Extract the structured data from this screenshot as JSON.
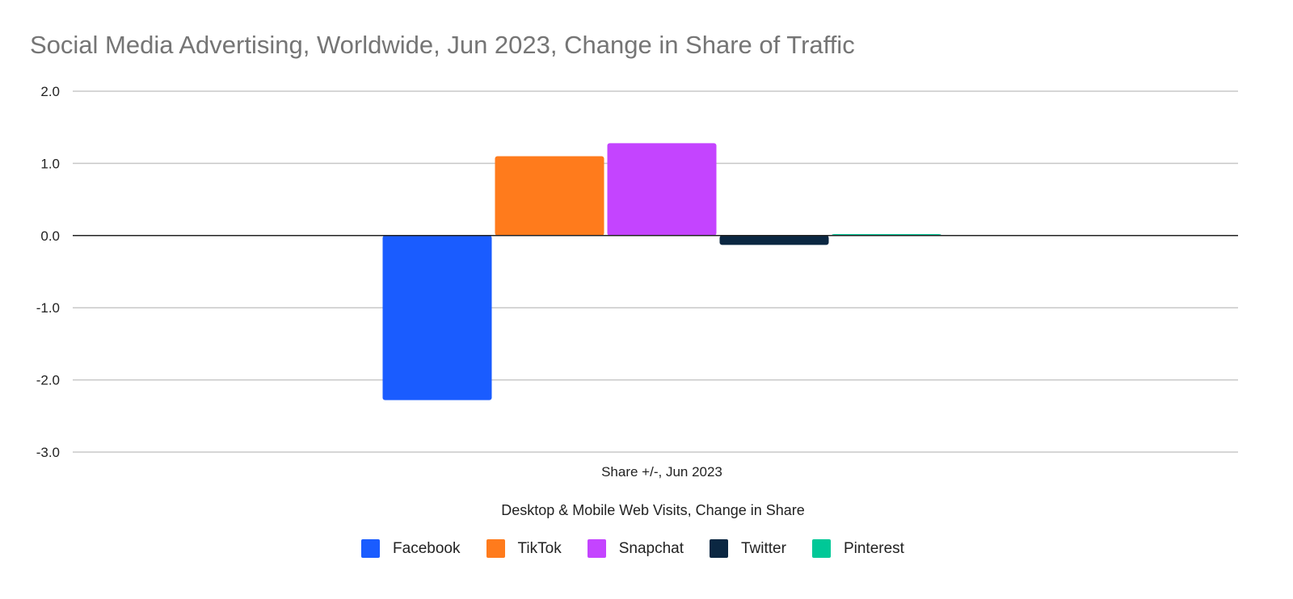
{
  "chart_data": {
    "type": "bar",
    "title": "Social Media Advertising, Worldwide, Jun 2023, Change in Share of Traffic",
    "categories": [
      "Share +/-, Jun 2023"
    ],
    "series": [
      {
        "name": "Facebook",
        "color": "#1a5cff",
        "values": [
          -2.28
        ]
      },
      {
        "name": "TikTok",
        "color": "#ff7b1c",
        "values": [
          1.1
        ]
      },
      {
        "name": "Snapchat",
        "color": "#c444ff",
        "values": [
          1.28
        ]
      },
      {
        "name": "Twitter",
        "color": "#0b2742",
        "values": [
          -0.13
        ]
      },
      {
        "name": "Pinterest",
        "color": "#00c897",
        "values": [
          0.02
        ]
      }
    ],
    "xlabel": "",
    "ylabel": "",
    "ylim": [
      -3.0,
      2.0
    ],
    "yticks": [
      "2.0",
      "1.0",
      "0.0",
      "-1.0",
      "-2.0",
      "-3.0"
    ],
    "legend_title": "Desktop & Mobile Web Visits, Change in Share",
    "legend_position": "bottom",
    "grid": true
  }
}
